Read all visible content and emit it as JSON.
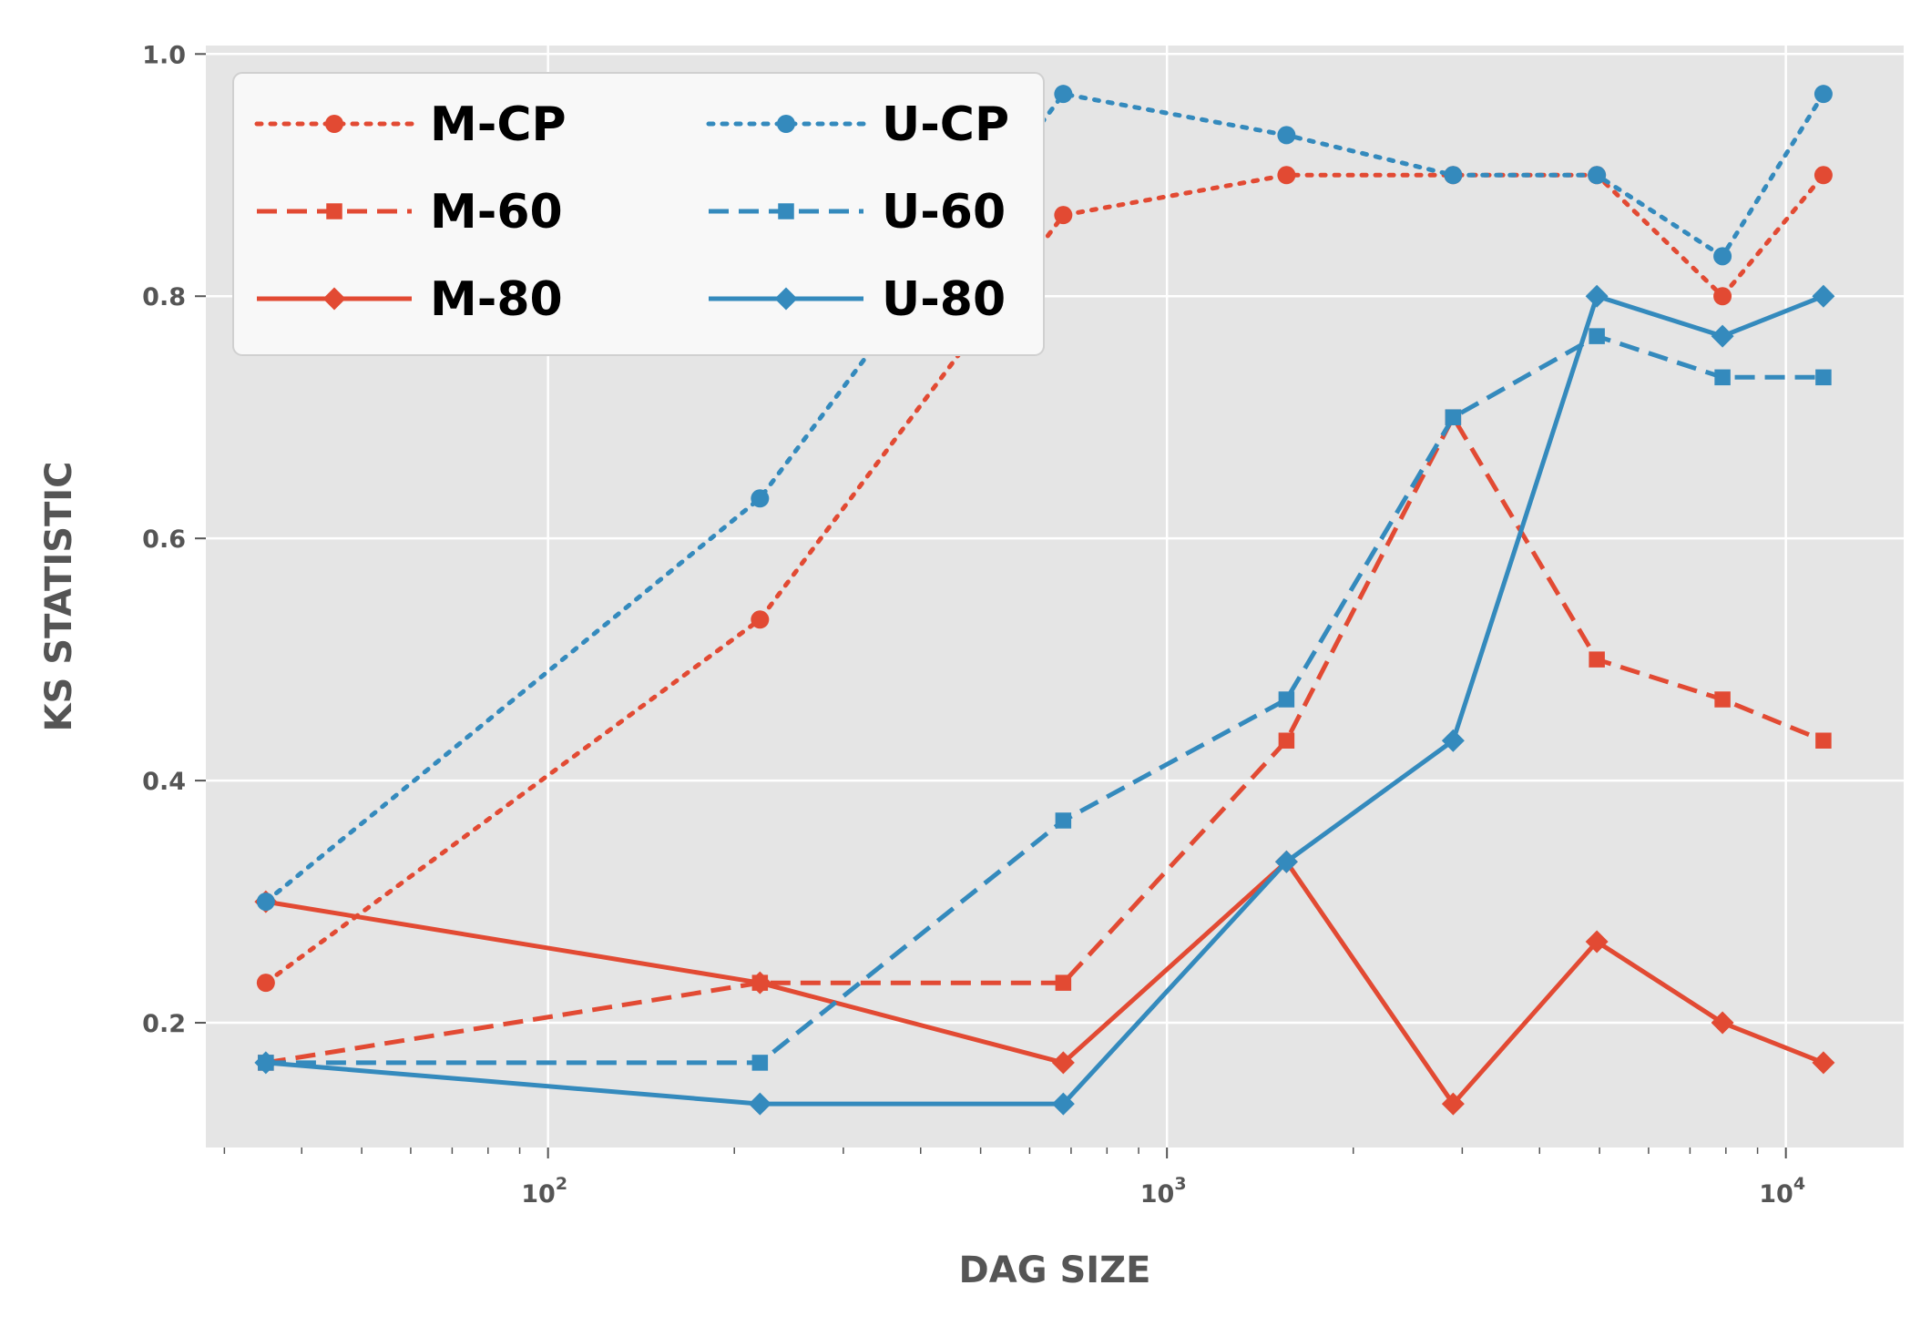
{
  "chart_data": {
    "type": "line",
    "title": "",
    "xlabel": "DAG SIZE",
    "ylabel": "KS STATISTIC",
    "xscale": "log",
    "xlim": [
      28,
      15500
    ],
    "ylim": [
      0.097,
      1.007
    ],
    "x_ticks": [
      100,
      1000,
      10000
    ],
    "x_tick_labels": [
      {
        "base": "10",
        "exp": "2"
      },
      {
        "base": "10",
        "exp": "3"
      },
      {
        "base": "10",
        "exp": "4"
      }
    ],
    "y_ticks": [
      0.2,
      0.4,
      0.6,
      0.8,
      1.0
    ],
    "y_tick_labels": [
      "0.2",
      "0.4",
      "0.6",
      "0.8",
      "1.0"
    ],
    "grid": true,
    "legend_placement": "top-left",
    "legend_columns": 2,
    "colors": {
      "M": "#E24A33",
      "U": "#348ABD",
      "plot_bg": "#E5E5E5",
      "grid": "#FFFFFF"
    },
    "x": [
      35,
      220,
      680,
      1560,
      2900,
      4950,
      7900,
      11500
    ],
    "series": [
      {
        "name": "M-CP",
        "color": "#E24A33",
        "linestyle": "dotted",
        "marker": "circle",
        "values": [
          0.233,
          0.533,
          0.867,
          0.9,
          0.9,
          0.9,
          0.8,
          0.9
        ]
      },
      {
        "name": "M-60",
        "color": "#E24A33",
        "linestyle": "dashed",
        "marker": "square",
        "values": [
          0.167,
          0.233,
          0.233,
          0.433,
          0.7,
          0.5,
          0.467,
          0.433
        ]
      },
      {
        "name": "M-80",
        "color": "#E24A33",
        "linestyle": "solid",
        "marker": "diamond",
        "values": [
          0.3,
          0.233,
          0.167,
          0.333,
          0.133,
          0.267,
          0.2,
          0.167
        ]
      },
      {
        "name": "U-CP",
        "color": "#348ABD",
        "linestyle": "dotted",
        "marker": "circle",
        "values": [
          0.3,
          0.633,
          0.967,
          0.933,
          0.9,
          0.9,
          0.833,
          0.967
        ]
      },
      {
        "name": "U-60",
        "color": "#348ABD",
        "linestyle": "dashed",
        "marker": "square",
        "values": [
          0.167,
          0.167,
          0.367,
          0.467,
          0.7,
          0.767,
          0.733,
          0.733
        ]
      },
      {
        "name": "U-80",
        "color": "#348ABD",
        "linestyle": "solid",
        "marker": "diamond",
        "values": [
          0.167,
          0.133,
          0.133,
          0.333,
          0.433,
          0.8,
          0.767,
          0.8
        ]
      }
    ]
  }
}
